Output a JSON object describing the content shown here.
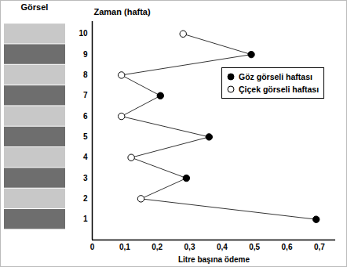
{
  "chart_data": {
    "type": "line",
    "header": "Görsel",
    "xlabel": "Litre başına ödeme",
    "ylabel": "Zaman (hafta)",
    "y": [
      1,
      2,
      3,
      4,
      5,
      6,
      7,
      8,
      9,
      10
    ],
    "series": [
      {
        "name": "Göz görseli haftası",
        "color": "#000000",
        "marker": "filled",
        "values": [
          0.69,
          null,
          0.29,
          null,
          0.36,
          null,
          0.21,
          null,
          0.49,
          null
        ]
      },
      {
        "name": "Çiçek görseli haftası",
        "color": "#000000",
        "marker": "open",
        "values": [
          null,
          0.15,
          null,
          0.12,
          null,
          0.09,
          null,
          0.09,
          null,
          0.28
        ]
      }
    ],
    "xlim": [
      0,
      0.75
    ],
    "xticks": [
      0,
      {
        "value": 0.1,
        "label": "0,1"
      },
      {
        "value": 0.2,
        "label": "0,2"
      },
      {
        "value": 0.3,
        "label": "0,3"
      },
      {
        "value": 0.4,
        "label": "0,4"
      },
      {
        "value": 0.5,
        "label": "0,5"
      },
      {
        "value": 0.6,
        "label": "0,6"
      },
      {
        "value": 0.7,
        "label": "0,7"
      }
    ],
    "ylim": [
      0,
      10.6
    ],
    "yticks": [
      1,
      2,
      3,
      4,
      5,
      6,
      7,
      8,
      9,
      10
    ],
    "legend": "right"
  }
}
